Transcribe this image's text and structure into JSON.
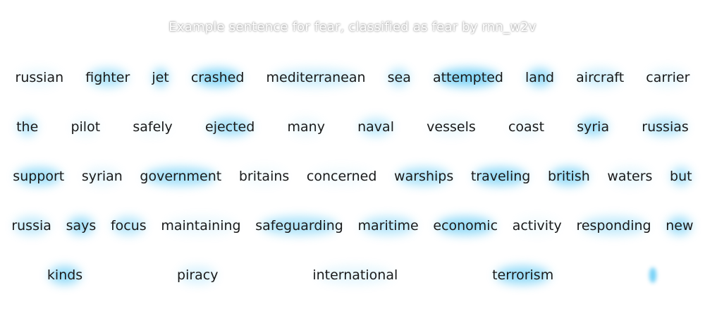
{
  "title": "Example sentence for fear, classified as fear by rnn_w2v",
  "accent_color": "#5ac8f5",
  "lines": [
    [
      {
        "text": "russian",
        "w": 0.08
      },
      {
        "text": "fighter",
        "w": 0.35
      },
      {
        "text": "jet",
        "w": 0.45
      },
      {
        "text": "crashed",
        "w": 0.5
      },
      {
        "text": "mediterranean",
        "w": 0.2
      },
      {
        "text": "sea",
        "w": 0.3
      },
      {
        "text": "attempted",
        "w": 0.55
      },
      {
        "text": "land",
        "w": 0.45
      },
      {
        "text": "aircraft",
        "w": 0.2
      },
      {
        "text": "carrier",
        "w": 0.1
      }
    ],
    [
      {
        "text": "the",
        "w": 0.3
      },
      {
        "text": "pilot",
        "w": 0.08
      },
      {
        "text": "safely",
        "w": 0.05
      },
      {
        "text": "ejected",
        "w": 0.38
      },
      {
        "text": "many",
        "w": 0.08
      },
      {
        "text": "naval",
        "w": 0.25
      },
      {
        "text": "vessels",
        "w": 0.08
      },
      {
        "text": "coast",
        "w": 0.08
      },
      {
        "text": "syria",
        "w": 0.4
      },
      {
        "text": "russias",
        "w": 0.3
      }
    ],
    [
      {
        "text": "support",
        "w": 0.4
      },
      {
        "text": "syrian",
        "w": 0.1
      },
      {
        "text": "government",
        "w": 0.4
      },
      {
        "text": "britains",
        "w": 0.05
      },
      {
        "text": "concerned",
        "w": 0.05
      },
      {
        "text": "warships",
        "w": 0.35
      },
      {
        "text": "traveling",
        "w": 0.45
      },
      {
        "text": "british",
        "w": 0.45
      },
      {
        "text": "waters",
        "w": 0.1
      },
      {
        "text": "but",
        "w": 0.35
      }
    ],
    [
      {
        "text": "russia",
        "w": 0.25
      },
      {
        "text": "says",
        "w": 0.4
      },
      {
        "text": "focus",
        "w": 0.3
      },
      {
        "text": "maintaining",
        "w": 0.08
      },
      {
        "text": "safeguarding",
        "w": 0.35
      },
      {
        "text": "maritime",
        "w": 0.3
      },
      {
        "text": "economic",
        "w": 0.45
      },
      {
        "text": "activity",
        "w": 0.05
      },
      {
        "text": "responding",
        "w": 0.25
      },
      {
        "text": "new",
        "w": 0.4
      }
    ],
    [
      {
        "text": "kinds",
        "w": 0.45
      },
      {
        "text": "piracy",
        "w": 0.15
      },
      {
        "text": "international",
        "w": 0.1
      },
      {
        "text": "terrorism",
        "w": 0.45
      },
      {
        "text": "",
        "w": 0.6
      }
    ]
  ]
}
